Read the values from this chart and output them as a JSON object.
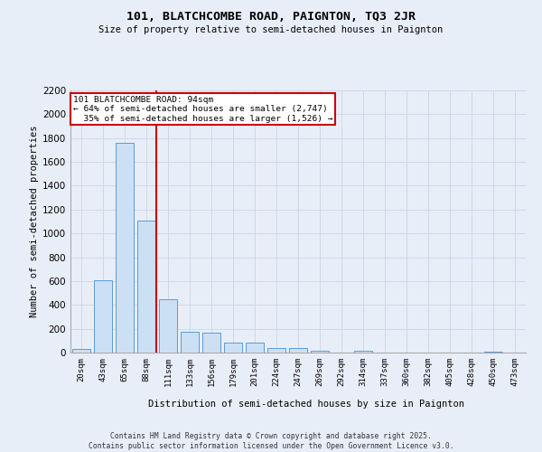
{
  "title": "101, BLATCHCOMBE ROAD, PAIGNTON, TQ3 2JR",
  "subtitle": "Size of property relative to semi-detached houses in Paignton",
  "xlabel": "Distribution of semi-detached houses by size in Paignton",
  "ylabel": "Number of semi-detached properties",
  "footer_line1": "Contains HM Land Registry data © Crown copyright and database right 2025.",
  "footer_line2": "Contains public sector information licensed under the Open Government Licence v3.0.",
  "bar_labels": [
    "20sqm",
    "43sqm",
    "65sqm",
    "88sqm",
    "111sqm",
    "133sqm",
    "156sqm",
    "179sqm",
    "201sqm",
    "224sqm",
    "247sqm",
    "269sqm",
    "292sqm",
    "314sqm",
    "337sqm",
    "360sqm",
    "382sqm",
    "405sqm",
    "428sqm",
    "450sqm",
    "473sqm"
  ],
  "bar_values": [
    30,
    610,
    1760,
    1110,
    450,
    175,
    170,
    85,
    85,
    40,
    35,
    15,
    0,
    15,
    0,
    0,
    0,
    0,
    0,
    10,
    0
  ],
  "bar_color": "#cce0f5",
  "bar_edge_color": "#5b9bd5",
  "grid_color": "#d0d8e8",
  "background_color": "#e8eef8",
  "annotation_box_facecolor": "#ffffff",
  "annotation_border_color": "#cc0000",
  "property_line_color": "#cc0000",
  "property_line_x": 3.45,
  "annotation_text_line1": "101 BLATCHCOMBE ROAD: 94sqm",
  "annotation_text_line2": "← 64% of semi-detached houses are smaller (2,747)",
  "annotation_text_line3": "  35% of semi-detached houses are larger (1,526) →",
  "ylim": [
    0,
    2200
  ],
  "yticks": [
    0,
    200,
    400,
    600,
    800,
    1000,
    1200,
    1400,
    1600,
    1800,
    2000,
    2200
  ]
}
